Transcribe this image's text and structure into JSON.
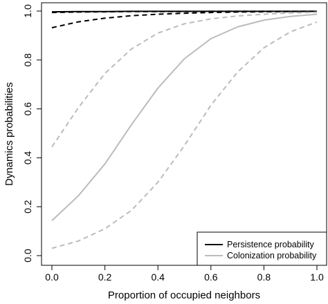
{
  "chart_data": {
    "type": "line",
    "xlabel": "Proportion of occupied neighbors",
    "ylabel": "Dynamics probabilities",
    "xlim": [
      0,
      1
    ],
    "ylim": [
      0,
      1
    ],
    "x_ticks": [
      "0.0",
      "0.2",
      "0.4",
      "0.6",
      "0.8",
      "1.0"
    ],
    "y_ticks": [
      "0.0",
      "0.2",
      "0.4",
      "0.6",
      "0.8",
      "1.0"
    ],
    "x": [
      0,
      0.1,
      0.2,
      0.3,
      0.4,
      0.5,
      0.6,
      0.7,
      0.8,
      0.9,
      1.0
    ],
    "legend_position": "bottom-right",
    "series": [
      {
        "name": "Persistence probability",
        "color": "#000000",
        "style": "solid",
        "values": [
          0.997,
          0.998,
          0.998,
          0.999,
          0.999,
          0.999,
          0.999,
          0.999,
          0.999,
          0.999,
          0.999
        ]
      },
      {
        "name": "",
        "color": "#000000",
        "style": "dashed",
        "values": [
          0.994,
          0.996,
          0.997,
          0.998,
          0.998,
          0.998,
          0.999,
          0.999,
          0.999,
          0.999,
          0.999
        ]
      },
      {
        "name": "",
        "color": "#000000",
        "style": "dashed",
        "values": [
          0.932,
          0.956,
          0.971,
          0.981,
          0.987,
          0.991,
          0.994,
          0.996,
          0.997,
          0.998,
          0.999
        ]
      },
      {
        "name": "Colonization probability",
        "color": "#bbbbbb",
        "style": "solid",
        "values": [
          0.143,
          0.245,
          0.375,
          0.535,
          0.685,
          0.805,
          0.887,
          0.935,
          0.963,
          0.978,
          0.987
        ]
      },
      {
        "name": "",
        "color": "#bbbbbb",
        "style": "dashed",
        "values": [
          0.445,
          0.605,
          0.745,
          0.845,
          0.91,
          0.948,
          0.968,
          0.98,
          0.987,
          0.992,
          0.995
        ]
      },
      {
        "name": "",
        "color": "#bbbbbb",
        "style": "dashed",
        "values": [
          0.03,
          0.06,
          0.11,
          0.185,
          0.3,
          0.45,
          0.615,
          0.75,
          0.85,
          0.915,
          0.955
        ]
      }
    ]
  }
}
